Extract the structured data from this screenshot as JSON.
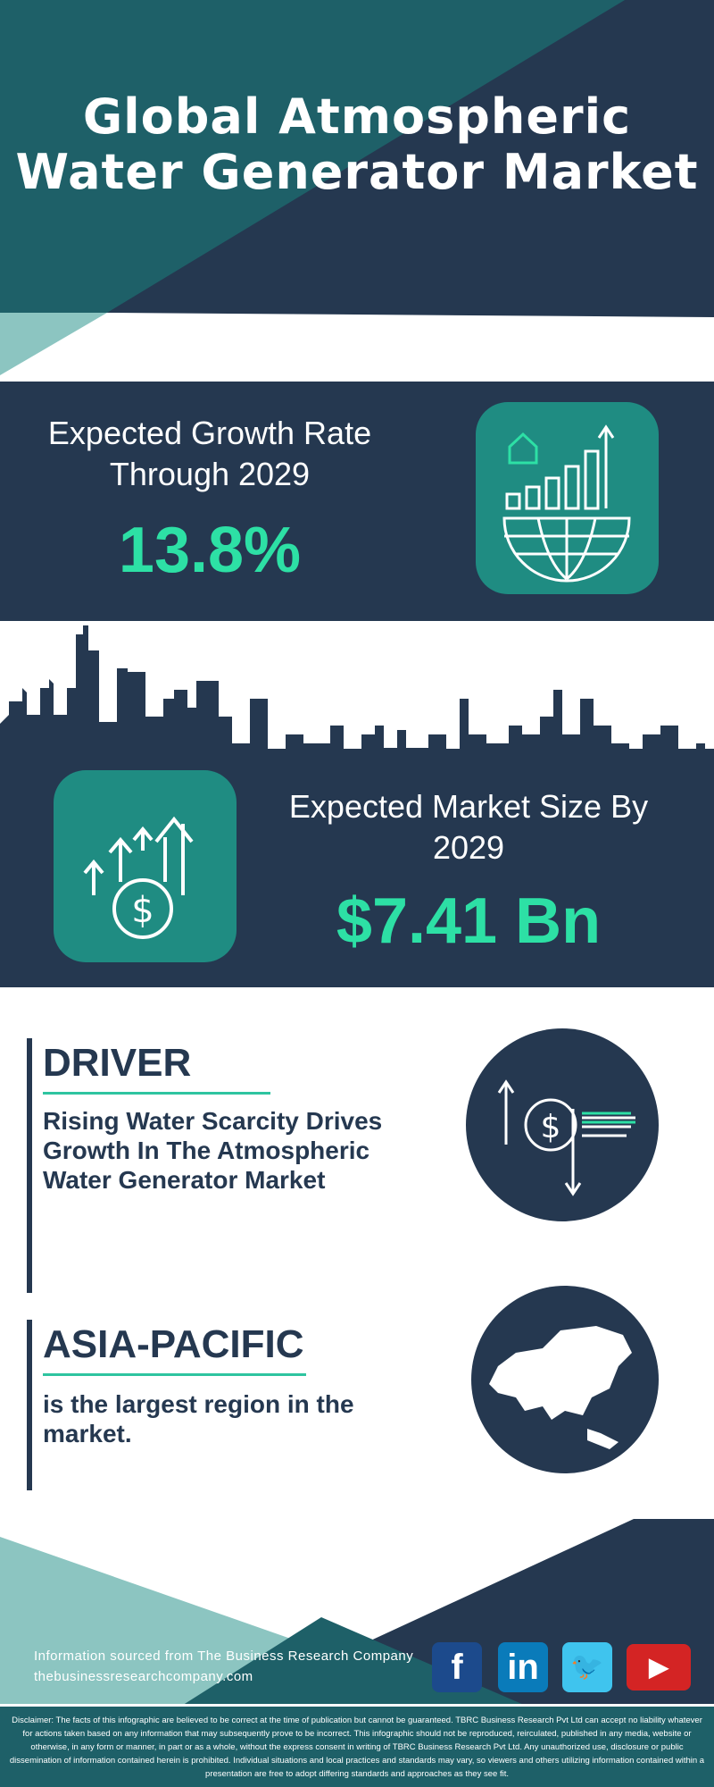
{
  "title": "Global Atmospheric Water Generator Market",
  "growth": {
    "label": "Expected Growth Rate Through 2029",
    "value": "13.8%"
  },
  "market": {
    "label": "Expected Market Size By 2029",
    "value": "$7.41 Bn"
  },
  "driver": {
    "heading": "DRIVER",
    "text": "Rising Water Scarcity Drives Growth In The Atmospheric Water Generator Market"
  },
  "region": {
    "heading": "ASIA-PACIFIC",
    "text": "is the largest region in the market."
  },
  "footer": {
    "source": "Information sourced from The Business Research Company",
    "website": "thebusinessresearchcompany.com",
    "social": [
      "facebook-icon",
      "linkedin-icon",
      "twitter-icon",
      "youtube-icon"
    ],
    "disclaimer": "Disclaimer: The facts of this infographic are believed to be correct at the time of publication but cannot be guaranteed. TBRC Business Research Pvt Ltd can accept no liability whatever for actions taken based on any information that may subsequently prove to be incorrect. This infographic should not be reproduced, reirculated, published in any media, website or otherwise, in any form or manner, in part or as a whole, without the express consent in writing of TBRC Business Research Pvt Ltd. Any unauthorized use, disclosure or public dissemination of information contained herein is prohibited. Individual situations and local practices and standards may vary, so viewers and others utilizing information contained within a presentation are free to adopt differing standards and approaches as they see fit."
  },
  "colors": {
    "navy": "#253850",
    "teal": "#1e6068",
    "accent": "#2de0a5",
    "icon_bg": "#1f8c82",
    "light_teal": "#8cc5c1"
  }
}
